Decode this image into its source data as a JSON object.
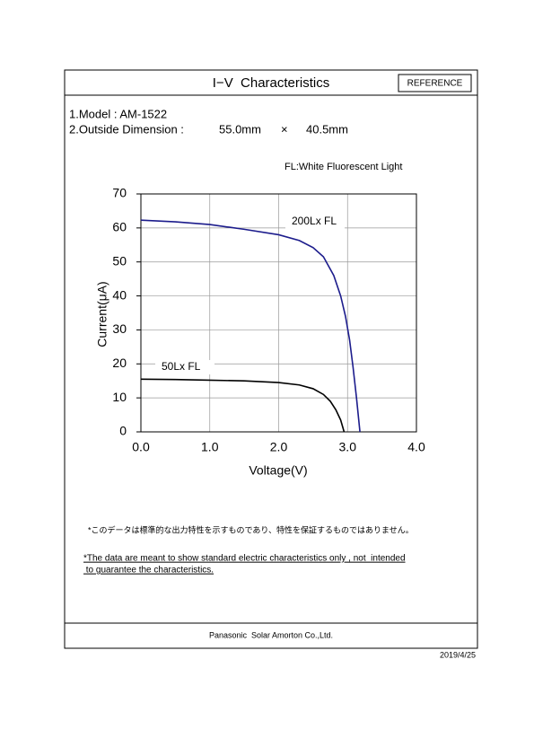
{
  "header": {
    "title": "I−V  Characteristics",
    "badge": "REFERENCE"
  },
  "specs": {
    "model": "1.Model : AM-1522",
    "dimension_label": "2.Outside Dimension :",
    "width": "55.0mm",
    "times": "×",
    "height": "40.5mm"
  },
  "chart_data": {
    "type": "line",
    "subtitle": "FL:White Fluorescent Light",
    "x_label": "Voltage(V)",
    "y_label": "Current(μA)",
    "xlim": [
      0,
      4
    ],
    "ylim": [
      0,
      70
    ],
    "xticks": [
      {
        "value": 0,
        "label": "0.0"
      },
      {
        "value": 1,
        "label": "1.0"
      },
      {
        "value": 2,
        "label": "2.0"
      },
      {
        "value": 3,
        "label": "3.0"
      },
      {
        "value": 4,
        "label": "4.0"
      }
    ],
    "yticks": [
      0,
      10,
      20,
      30,
      40,
      50,
      60,
      70
    ],
    "grid": true,
    "series": [
      {
        "name": "200Lx FL",
        "color": "#1c1c8c",
        "x": [
          0,
          0.5,
          1.0,
          1.5,
          2.0,
          2.3,
          2.5,
          2.65,
          2.8,
          2.9,
          2.97,
          3.03,
          3.08,
          3.13,
          3.18
        ],
        "values": [
          62.3,
          61.8,
          61,
          59.6,
          58,
          56.3,
          54.2,
          51.5,
          46,
          40,
          34,
          27,
          19,
          10,
          0
        ]
      },
      {
        "name": "50Lx FL",
        "color": "#000000",
        "x": [
          0,
          0.5,
          1.0,
          1.5,
          2.0,
          2.3,
          2.5,
          2.65,
          2.75,
          2.83,
          2.9,
          2.95
        ],
        "values": [
          15.5,
          15.4,
          15.2,
          15,
          14.5,
          13.8,
          12.7,
          11,
          9,
          6.5,
          3.5,
          0
        ]
      }
    ]
  },
  "notes": {
    "japanese": "*このデータは標準的な出力特性を示すものであり、特性を保証するものではありません。",
    "english": [
      "*The data are meant to show standard electric characteristics only , not  intended",
      " to guarantee the characteristics."
    ]
  },
  "footer": {
    "company": "Panasonic  Solar Amorton Co.,Ltd.",
    "date": "2019/4/25"
  }
}
